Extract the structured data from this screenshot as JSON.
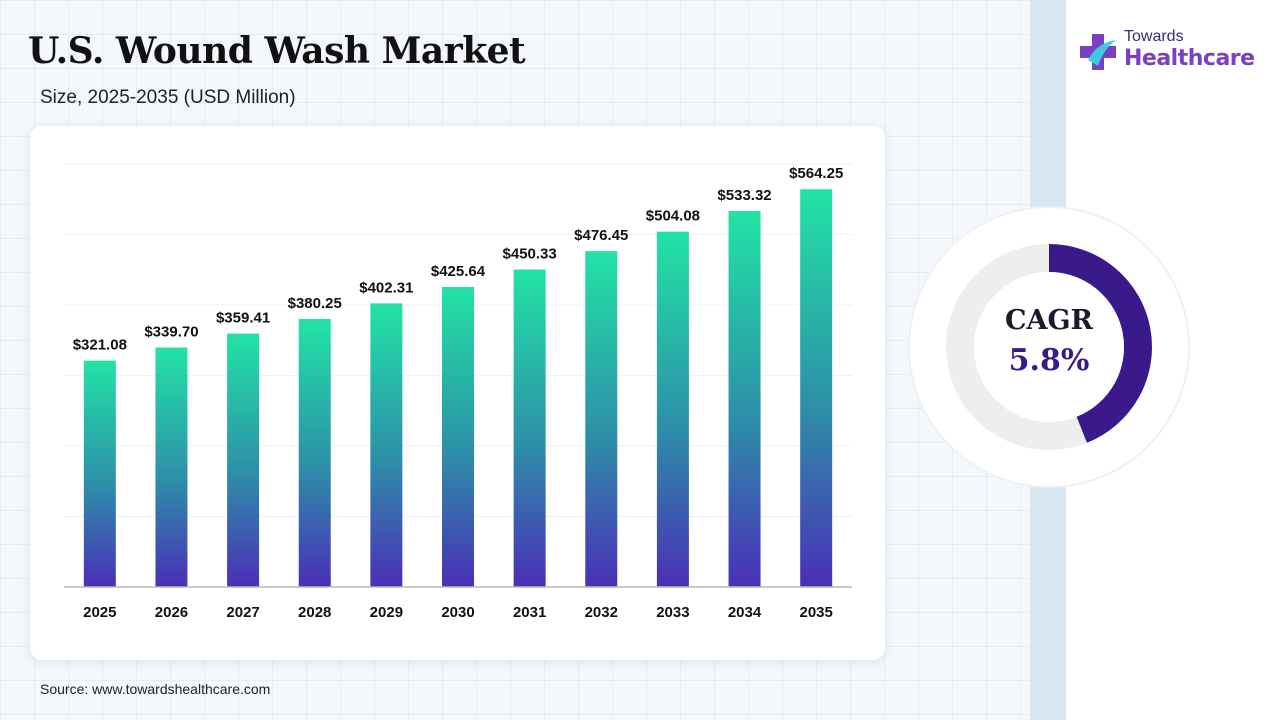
{
  "header": {
    "title": "U.S. Wound Wash Market",
    "subtitle": "Size, 2025-2035 (USD Million)"
  },
  "logo": {
    "top": "Towards",
    "main": "Healthcare"
  },
  "cagr": {
    "label": "CAGR",
    "value": "5.8%",
    "fraction": 0.44,
    "ring_color": "#3a1a8a"
  },
  "source": "Source: www.towardshealthcare.com",
  "colors": {
    "bar_top": "#22e3a6",
    "bar_mid": "#2d8fa8",
    "bar_bottom": "#4a2fb8",
    "accent": "#3a1a8a"
  },
  "chart_data": {
    "type": "bar",
    "categories": [
      "2025",
      "2026",
      "2027",
      "2028",
      "2029",
      "2030",
      "2031",
      "2032",
      "2033",
      "2034",
      "2035"
    ],
    "values": [
      321.08,
      339.7,
      359.41,
      380.25,
      402.31,
      425.64,
      450.33,
      476.45,
      504.08,
      533.32,
      564.25
    ],
    "labels": [
      "$321.08",
      "$339.70",
      "$359.41",
      "$380.25",
      "$402.31",
      "$425.64",
      "$450.33",
      "$476.45",
      "$504.08",
      "$533.32",
      "$564.25"
    ],
    "title": "U.S. Wound Wash Market",
    "subtitle": "Size, 2025-2035 (USD Million)",
    "xlabel": "",
    "ylabel": "",
    "ylim": [
      0,
      600
    ],
    "grid": true,
    "legend": "none"
  }
}
